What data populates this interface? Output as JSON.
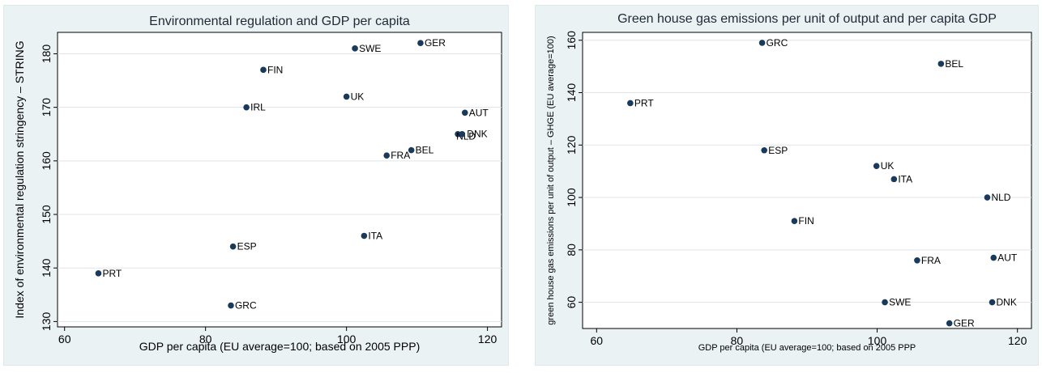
{
  "chart_data": [
    {
      "type": "scatter",
      "title": "Environmental regulation and GDP per capita",
      "xlabel": "GDP per capita (EU average=100; based on 2005 PPP)",
      "ylabel": "Index of environmental regulation stringency – STRING",
      "xlim": [
        59,
        122
      ],
      "ylim": [
        129,
        184
      ],
      "xticks": [
        60,
        80,
        100,
        120
      ],
      "yticks": [
        130,
        140,
        150,
        160,
        170,
        180
      ],
      "grid": true,
      "marker_color": "#1a3a5c",
      "points": [
        {
          "label": "GER",
          "x": 110.5,
          "y": 182
        },
        {
          "label": "SWE",
          "x": 101.2,
          "y": 181
        },
        {
          "label": "FIN",
          "x": 88.2,
          "y": 177
        },
        {
          "label": "UK",
          "x": 100.0,
          "y": 172
        },
        {
          "label": "IRL",
          "x": 85.8,
          "y": 170
        },
        {
          "label": "AUT",
          "x": 116.8,
          "y": 169
        },
        {
          "label": "NLD",
          "x": 115.8,
          "y": 165
        },
        {
          "label": "DNK",
          "x": 116.4,
          "y": 165
        },
        {
          "label": "BEL",
          "x": 109.2,
          "y": 162
        },
        {
          "label": "FRA",
          "x": 105.7,
          "y": 161
        },
        {
          "label": "ITA",
          "x": 102.5,
          "y": 146
        },
        {
          "label": "ESP",
          "x": 83.9,
          "y": 144
        },
        {
          "label": "PRT",
          "x": 64.8,
          "y": 139
        },
        {
          "label": "GRC",
          "x": 83.6,
          "y": 133
        }
      ]
    },
    {
      "type": "scatter",
      "title": "Green house gas emissions per unit of output and per capita GDP",
      "xlabel": "GDP per capita (EU average=100; based on 2005 PPP",
      "ylabel": "green house gas emissions per unit of output – GHGE (EU average=100)",
      "xlim": [
        58,
        122
      ],
      "ylim": [
        50,
        163
      ],
      "xticks": [
        60,
        80,
        100,
        120
      ],
      "yticks": [
        60,
        80,
        100,
        120,
        140,
        160
      ],
      "grid": true,
      "marker_color": "#1a3a5c",
      "points": [
        {
          "label": "GRC",
          "x": 83.6,
          "y": 159
        },
        {
          "label": "BEL",
          "x": 109.1,
          "y": 151
        },
        {
          "label": "PRT",
          "x": 64.8,
          "y": 136
        },
        {
          "label": "ESP",
          "x": 83.9,
          "y": 118
        },
        {
          "label": "UK",
          "x": 99.9,
          "y": 112
        },
        {
          "label": "ITA",
          "x": 102.4,
          "y": 107
        },
        {
          "label": "NLD",
          "x": 115.7,
          "y": 100
        },
        {
          "label": "FIN",
          "x": 88.2,
          "y": 91
        },
        {
          "label": "AUT",
          "x": 116.6,
          "y": 77
        },
        {
          "label": "FRA",
          "x": 105.7,
          "y": 76
        },
        {
          "label": "SWE",
          "x": 101.1,
          "y": 60
        },
        {
          "label": "DNK",
          "x": 116.4,
          "y": 60
        },
        {
          "label": "GER",
          "x": 110.3,
          "y": 52
        }
      ]
    }
  ]
}
